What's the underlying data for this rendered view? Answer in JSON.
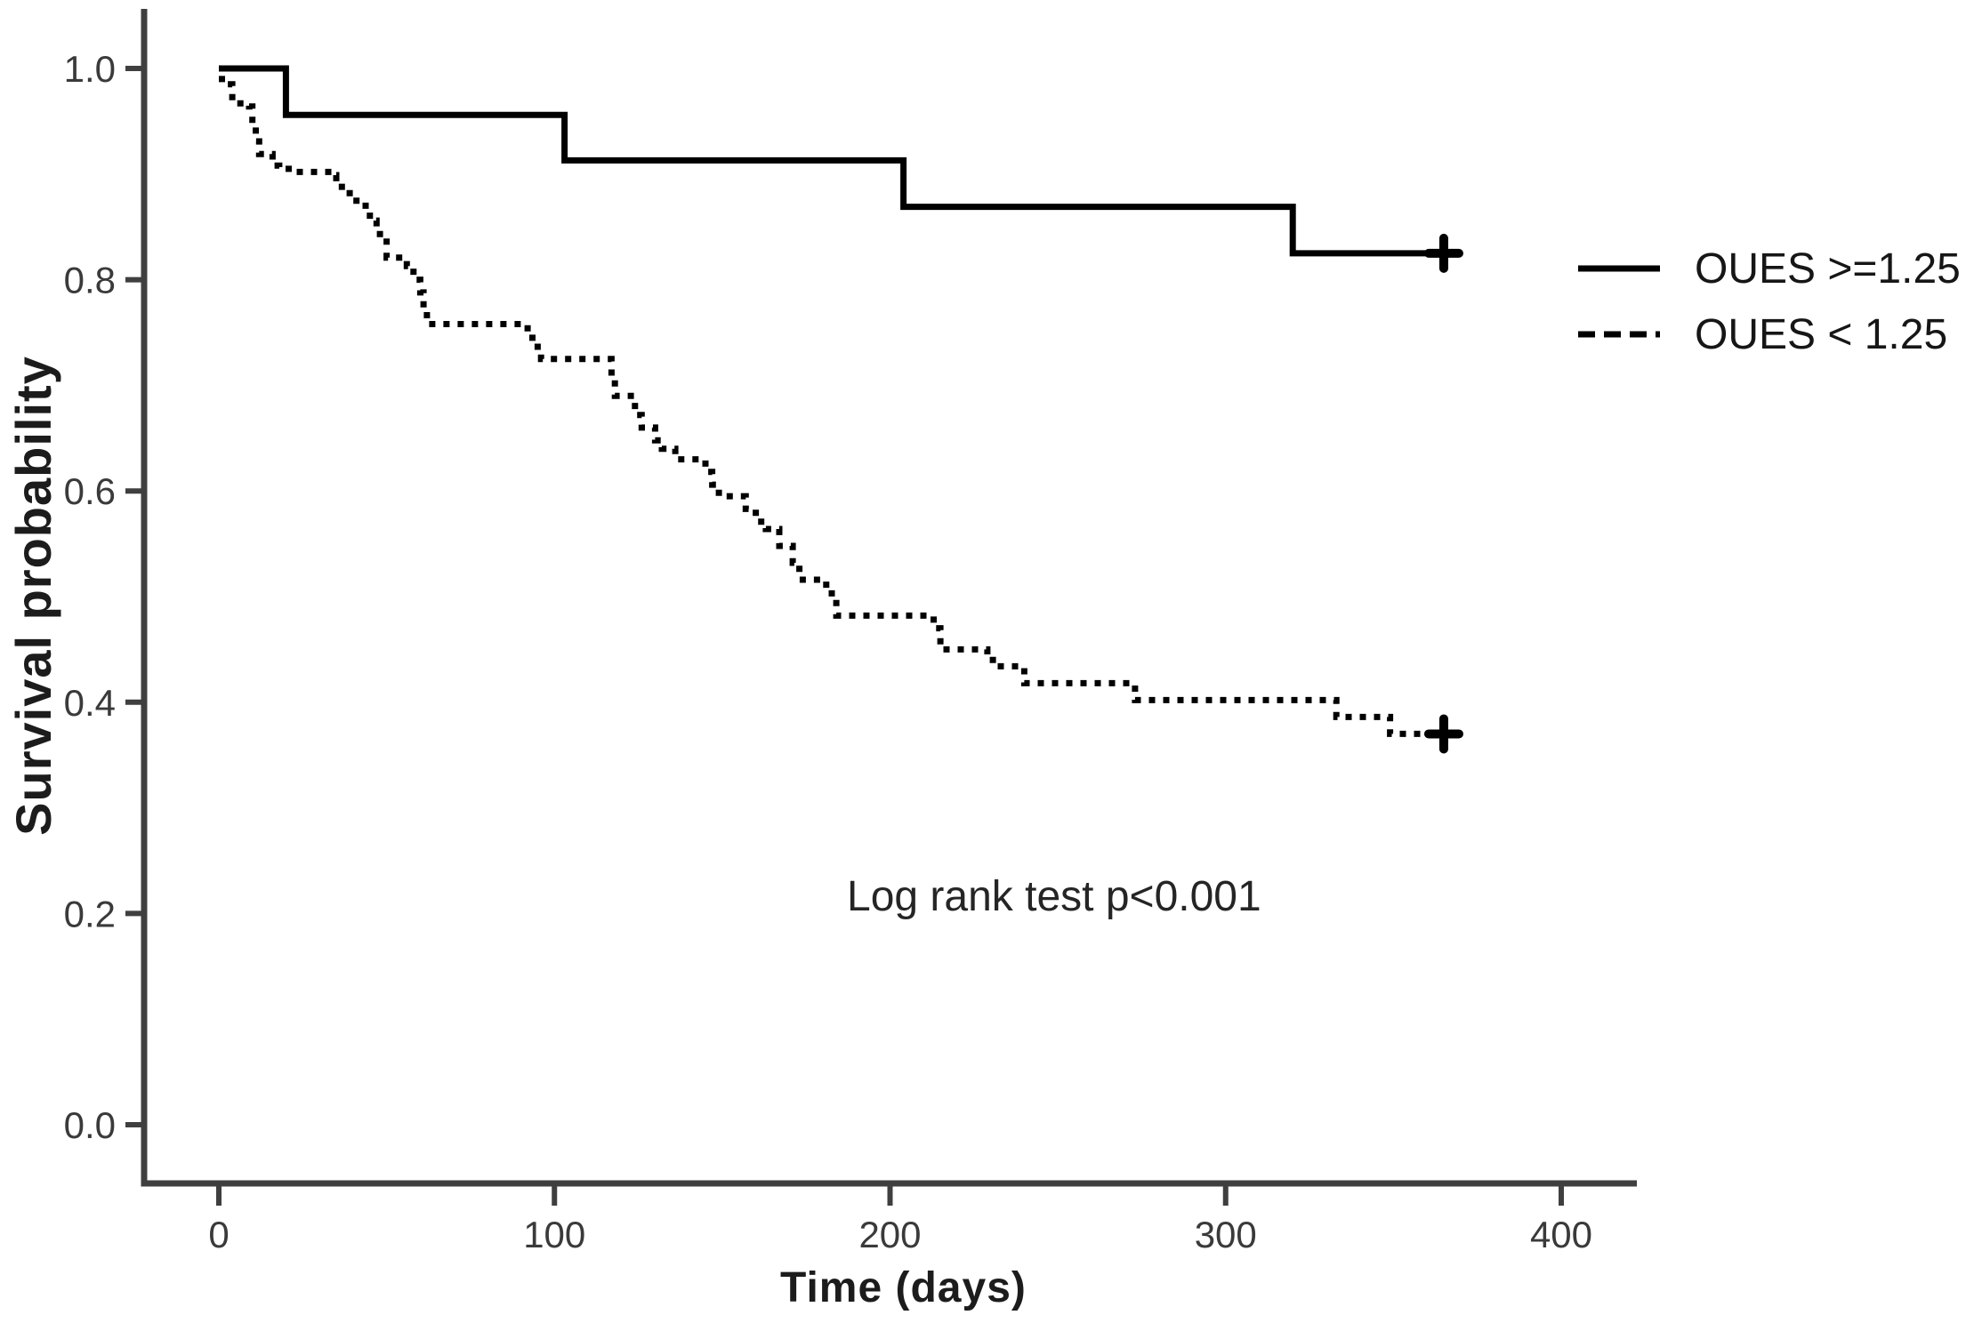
{
  "figure": {
    "background": "#ffffff",
    "axis_color": "#3f3f3f",
    "tick_label_color": "#3a3a3a",
    "curve_color": "#000000"
  },
  "chart_data": {
    "type": "line",
    "variant": "kaplan_meier_step",
    "title": "",
    "xlabel": "Time (days)",
    "ylabel": "Survival probability",
    "annotation": "Log rank test p<0.001",
    "grid": false,
    "legend_position": "right",
    "xlim": [
      -22,
      423
    ],
    "ylim": [
      -0.056,
      1.056
    ],
    "x_ticks": [
      0,
      100,
      200,
      300,
      400
    ],
    "x_tick_labels": [
      "0",
      "100",
      "200",
      "300",
      "400"
    ],
    "y_ticks": [
      1.0,
      0.8,
      0.6,
      0.4,
      0.2,
      0.0
    ],
    "y_tick_labels": [
      "1.0",
      "0.8",
      "0.6",
      "0.4",
      "0.2",
      "0.0"
    ],
    "series": [
      {
        "name": "OUES >=1.25",
        "line_style": "solid",
        "color": "#000000",
        "follow_up_end": 365,
        "steps": [
          [
            0,
            1.0
          ],
          [
            20,
            0.956
          ],
          [
            103,
            0.913
          ],
          [
            204,
            0.869
          ],
          [
            320,
            0.825
          ]
        ],
        "censored": [
          [
            365,
            0.825
          ]
        ]
      },
      {
        "name": "OUES < 1.25",
        "line_style": "dashed",
        "color": "#000000",
        "follow_up_end": 365,
        "steps": [
          [
            0,
            0.99
          ],
          [
            2,
            0.985
          ],
          [
            4,
            0.967
          ],
          [
            9,
            0.964
          ],
          [
            10,
            0.945
          ],
          [
            11,
            0.931
          ],
          [
            12,
            0.919
          ],
          [
            16,
            0.908
          ],
          [
            18,
            0.905
          ],
          [
            22,
            0.902
          ],
          [
            34,
            0.899
          ],
          [
            35,
            0.888
          ],
          [
            39,
            0.878
          ],
          [
            41,
            0.87
          ],
          [
            45,
            0.856
          ],
          [
            47,
            0.849
          ],
          [
            48,
            0.836
          ],
          [
            50,
            0.821
          ],
          [
            56,
            0.813
          ],
          [
            58,
            0.8
          ],
          [
            60,
            0.788
          ],
          [
            61,
            0.772
          ],
          [
            62,
            0.758
          ],
          [
            92,
            0.745
          ],
          [
            95,
            0.733
          ],
          [
            96,
            0.725
          ],
          [
            117,
            0.706
          ],
          [
            118,
            0.69
          ],
          [
            124,
            0.672
          ],
          [
            126,
            0.66
          ],
          [
            130,
            0.648
          ],
          [
            132,
            0.64
          ],
          [
            136,
            0.63
          ],
          [
            145,
            0.618
          ],
          [
            147,
            0.606
          ],
          [
            149,
            0.595
          ],
          [
            157,
            0.583
          ],
          [
            160,
            0.571
          ],
          [
            163,
            0.564
          ],
          [
            167,
            0.548
          ],
          [
            171,
            0.532
          ],
          [
            173,
            0.516
          ],
          [
            181,
            0.503
          ],
          [
            184,
            0.482
          ],
          [
            213,
            0.47
          ],
          [
            215,
            0.45
          ],
          [
            229,
            0.44
          ],
          [
            232,
            0.434
          ],
          [
            240,
            0.418
          ],
          [
            273,
            0.402
          ],
          [
            333,
            0.386
          ],
          [
            349,
            0.37
          ]
        ],
        "censored": [
          [
            365,
            0.37
          ]
        ]
      }
    ]
  }
}
